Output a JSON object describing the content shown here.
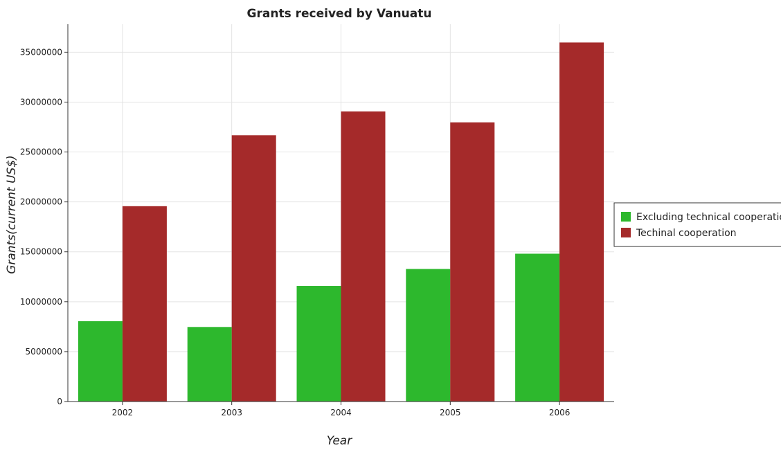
{
  "chart_data": {
    "type": "bar",
    "title": "Grants received by Vanuatu",
    "xlabel": "Year",
    "ylabel": "Grants(current US$)",
    "categories": [
      "2002",
      "2003",
      "2004",
      "2005",
      "2006"
    ],
    "series": [
      {
        "name": "Excluding technical cooperation",
        "values": [
          8050000,
          7470000,
          11580000,
          13280000,
          14810000
        ],
        "color": "#2db82d"
      },
      {
        "name": "Techinal cooperation",
        "values": [
          19570000,
          26680000,
          29060000,
          27970000,
          35970000
        ],
        "color": "#a52a2a"
      }
    ],
    "yticks": [
      0,
      5000000,
      10000000,
      15000000,
      20000000,
      25000000,
      30000000,
      35000000
    ],
    "ytick_labels": [
      "0",
      "5000000",
      "10000000",
      "15000000",
      "20000000",
      "25000000",
      "30000000",
      "35000000"
    ],
    "ylim": [
      0,
      37800000
    ],
    "grid": true,
    "legend_position": "right"
  }
}
